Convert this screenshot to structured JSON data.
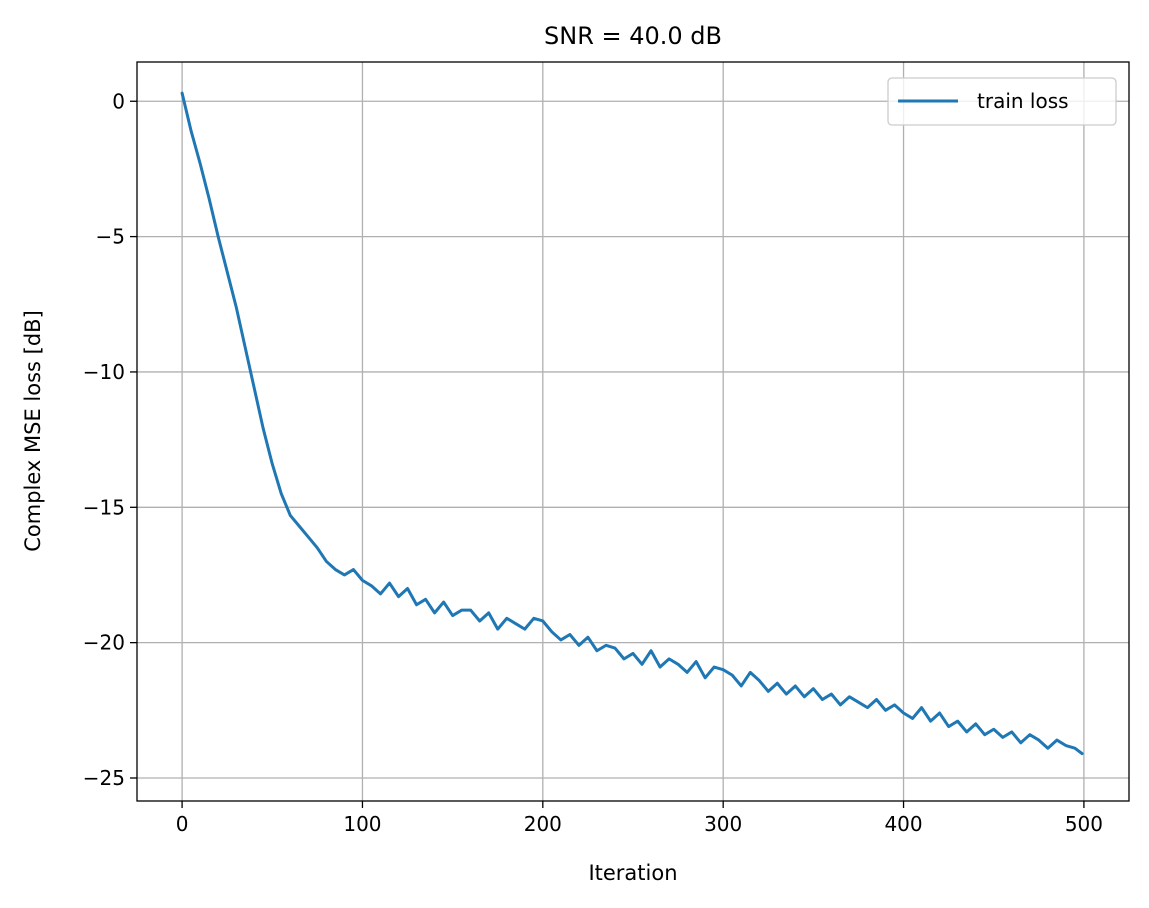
{
  "chart_data": {
    "type": "line",
    "title": "SNR = 40.0 dB",
    "xlabel": "Iteration",
    "ylabel": "Complex MSE loss [dB]",
    "xlim": [
      -25,
      525
    ],
    "ylim": [
      -25.85,
      1.45
    ],
    "xticks": [
      0,
      100,
      200,
      300,
      400,
      500
    ],
    "yticks": [
      0,
      -5,
      -10,
      -15,
      -20,
      -25
    ],
    "xtick_labels": [
      "0",
      "100",
      "200",
      "300",
      "400",
      "500"
    ],
    "ytick_labels": [
      "0",
      "−5",
      "−10",
      "−15",
      "−20",
      "−25"
    ],
    "grid": true,
    "legend": {
      "position": "top-right",
      "entries": [
        "train loss"
      ]
    },
    "colors": {
      "series": "#1f77b4",
      "grid": "#b0b0b0",
      "axes": "#000000",
      "legend_border": "#cccccc"
    },
    "series": [
      {
        "name": "train loss",
        "sampling": "every 5 iterations",
        "x": [
          0,
          5,
          10,
          15,
          20,
          25,
          30,
          35,
          40,
          45,
          50,
          55,
          60,
          65,
          70,
          75,
          80,
          85,
          90,
          95,
          100,
          105,
          110,
          115,
          120,
          125,
          130,
          135,
          140,
          145,
          150,
          155,
          160,
          165,
          170,
          175,
          180,
          185,
          190,
          195,
          200,
          205,
          210,
          215,
          220,
          225,
          230,
          235,
          240,
          245,
          250,
          255,
          260,
          265,
          270,
          275,
          280,
          285,
          290,
          295,
          300,
          305,
          310,
          315,
          320,
          325,
          330,
          335,
          340,
          345,
          350,
          355,
          360,
          365,
          370,
          375,
          380,
          385,
          390,
          395,
          400,
          405,
          410,
          415,
          420,
          425,
          430,
          435,
          440,
          445,
          450,
          455,
          460,
          465,
          470,
          475,
          480,
          485,
          490,
          495,
          499
        ],
        "y": [
          0.3,
          -1.1,
          -2.3,
          -3.6,
          -5.0,
          -6.3,
          -7.6,
          -9.1,
          -10.6,
          -12.1,
          -13.4,
          -14.5,
          -15.3,
          -15.7,
          -16.1,
          -16.5,
          -17.0,
          -17.3,
          -17.5,
          -17.3,
          -17.7,
          -17.9,
          -18.2,
          -17.8,
          -18.3,
          -18.0,
          -18.6,
          -18.4,
          -18.9,
          -18.5,
          -19.0,
          -18.8,
          -18.8,
          -19.2,
          -18.9,
          -19.5,
          -19.1,
          -19.3,
          -19.5,
          -19.1,
          -19.2,
          -19.6,
          -19.9,
          -19.7,
          -20.1,
          -19.8,
          -20.3,
          -20.1,
          -20.2,
          -20.6,
          -20.4,
          -20.8,
          -20.3,
          -20.9,
          -20.6,
          -20.8,
          -21.1,
          -20.7,
          -21.3,
          -20.9,
          -21.0,
          -21.2,
          -21.6,
          -21.1,
          -21.4,
          -21.8,
          -21.5,
          -21.9,
          -21.6,
          -22.0,
          -21.7,
          -22.1,
          -21.9,
          -22.3,
          -22.0,
          -22.2,
          -22.4,
          -22.1,
          -22.5,
          -22.3,
          -22.6,
          -22.8,
          -22.4,
          -22.9,
          -22.6,
          -23.1,
          -22.9,
          -23.3,
          -23.0,
          -23.4,
          -23.2,
          -23.5,
          -23.3,
          -23.7,
          -23.4,
          -23.6,
          -23.9,
          -23.6,
          -23.8,
          -23.9,
          -24.1
        ]
      }
    ]
  }
}
